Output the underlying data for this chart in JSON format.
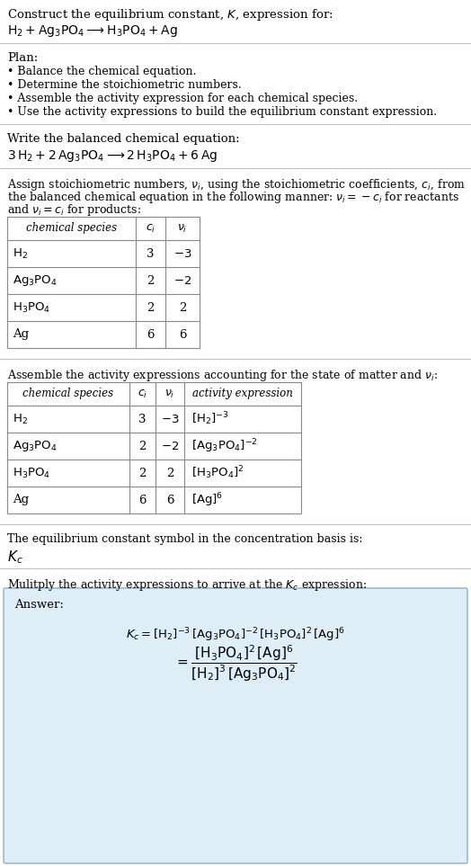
{
  "title_line1": "Construct the equilibrium constant, $K$, expression for:",
  "title_line2": "$\\mathrm{H_2 + Ag_3PO_4 \\longrightarrow H_3PO_4 + Ag}$",
  "plan_header": "Plan:",
  "plan_bullets": [
    "• Balance the chemical equation.",
    "• Determine the stoichiometric numbers.",
    "• Assemble the activity expression for each chemical species.",
    "• Use the activity expressions to build the equilibrium constant expression."
  ],
  "balanced_header": "Write the balanced chemical equation:",
  "balanced_eq": "$\\mathrm{3\\,H_2 + 2\\,Ag_3PO_4 \\longrightarrow 2\\,H_3PO_4 + 6\\,Ag}$",
  "stoich_header1": "Assign stoichiometric numbers, $\\nu_i$, using the stoichiometric coefficients, $c_i$, from",
  "stoich_header2": "the balanced chemical equation in the following manner: $\\nu_i = -c_i$ for reactants",
  "stoich_header3": "and $\\nu_i = c_i$ for products:",
  "table1_cols": [
    "chemical species",
    "$c_i$",
    "$\\nu_i$"
  ],
  "table1_rows": [
    [
      "$\\mathrm{H_2}$",
      "3",
      "$-3$"
    ],
    [
      "$\\mathrm{Ag_3PO_4}$",
      "2",
      "$-2$"
    ],
    [
      "$\\mathrm{H_3PO_4}$",
      "2",
      "2"
    ],
    [
      "Ag",
      "6",
      "6"
    ]
  ],
  "activity_header": "Assemble the activity expressions accounting for the state of matter and $\\nu_i$:",
  "table2_cols": [
    "chemical species",
    "$c_i$",
    "$\\nu_i$",
    "activity expression"
  ],
  "table2_rows": [
    [
      "$\\mathrm{H_2}$",
      "3",
      "$-3$",
      "$[\\mathrm{H_2}]^{-3}$"
    ],
    [
      "$\\mathrm{Ag_3PO_4}$",
      "2",
      "$-2$",
      "$[\\mathrm{Ag_3PO_4}]^{-2}$"
    ],
    [
      "$\\mathrm{H_3PO_4}$",
      "2",
      "2",
      "$[\\mathrm{H_3PO_4}]^{2}$"
    ],
    [
      "Ag",
      "6",
      "6",
      "$[\\mathrm{Ag}]^{6}$"
    ]
  ],
  "kc_header": "The equilibrium constant symbol in the concentration basis is:",
  "kc_symbol": "$K_c$",
  "multiply_header": "Mulitply the activity expressions to arrive at the $K_c$ expression:",
  "answer_label": "Answer:",
  "bg_color": "#ffffff",
  "text_color": "#000000",
  "answer_box_bg": "#ddeef6",
  "answer_box_edge": "#99bbcc",
  "divider_color": "#bbbbbb"
}
